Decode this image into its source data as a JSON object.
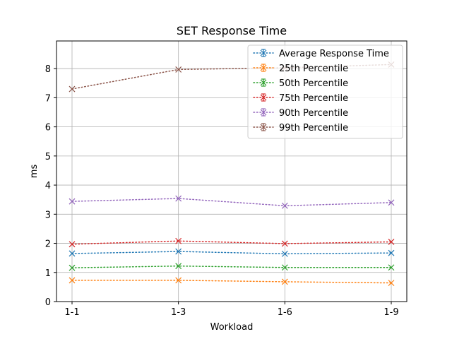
{
  "chart_data": {
    "type": "line",
    "title": "SET Response Time",
    "xlabel": "Workload",
    "ylabel": "ms",
    "categories": [
      "1-1",
      "1-3",
      "1-6",
      "1-9"
    ],
    "ylim": [
      0,
      8.95
    ],
    "yticks": [
      0,
      1,
      2,
      3,
      4,
      5,
      6,
      7,
      8
    ],
    "grid": true,
    "legend_position": "top-right",
    "marker": "x",
    "line_style": "dotted",
    "series": [
      {
        "name": "Average Response Time",
        "color": "#1f77b4",
        "values": [
          1.65,
          1.72,
          1.64,
          1.67
        ]
      },
      {
        "name": "25th Percentile",
        "color": "#ff7f0e",
        "values": [
          0.73,
          0.73,
          0.68,
          0.64
        ]
      },
      {
        "name": "50th Percentile",
        "color": "#2ca02c",
        "values": [
          1.16,
          1.22,
          1.17,
          1.17
        ]
      },
      {
        "name": "75th Percentile",
        "color": "#d62728",
        "values": [
          1.97,
          2.08,
          1.99,
          2.05
        ]
      },
      {
        "name": "90th Percentile",
        "color": "#9467bd",
        "values": [
          3.44,
          3.54,
          3.29,
          3.4
        ]
      },
      {
        "name": "99th Percentile",
        "color": "#8c564b",
        "values": [
          7.3,
          7.97,
          8.03,
          8.14
        ]
      }
    ]
  }
}
